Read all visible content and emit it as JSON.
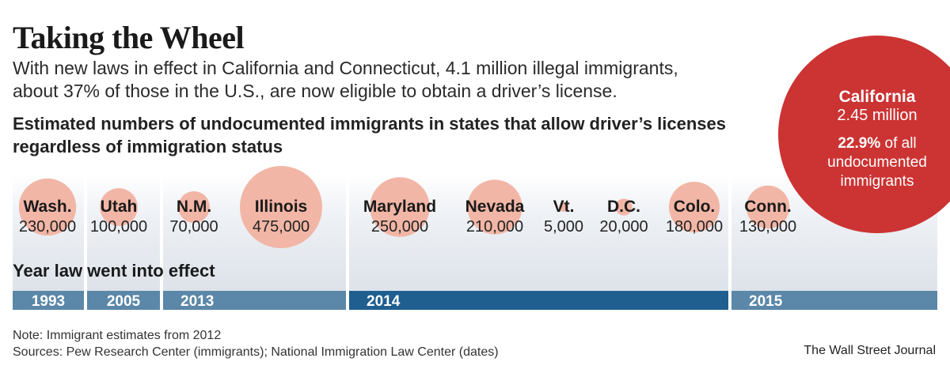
{
  "header": {
    "title": "Taking the Wheel",
    "subtitle": "With new laws in effect in California and Connecticut, 4.1 million illegal immigrants, about 37% of those in the U.S., are now eligible to obtain a driver’s license.",
    "chart_heading": "Estimated numbers of undocumented immigrants in states that allow driver’s licenses regardless of immigration status",
    "year_heading": "Year law went into effect"
  },
  "footer": {
    "note": "Note: Immigrant estimates from 2012",
    "sources": "Sources: Pew Research Center (immigrants); National Immigration Law Center (dates)",
    "publisher": "The Wall Street Journal"
  },
  "colors": {
    "bubble": "#f2b6a6",
    "california": "#cc3333",
    "band": "#dde3ea",
    "year_bar": "#5b87a8",
    "year_bar_2014": "#1f5f8f"
  },
  "chart_data": {
    "type": "bubble",
    "title": "Estimated numbers of undocumented immigrants in states that allow driver’s licenses regardless of immigration status",
    "series": [
      {
        "state": "Wash.",
        "value": 230000,
        "label": "230,000",
        "year": 1993
      },
      {
        "state": "Utah",
        "value": 100000,
        "label": "100,000",
        "year": 2005
      },
      {
        "state": "N.M.",
        "value": 70000,
        "label": "70,000",
        "year": 2013
      },
      {
        "state": "Illinois",
        "value": 475000,
        "label": "475,000",
        "year": 2013
      },
      {
        "state": "Maryland",
        "value": 250000,
        "label": "250,000",
        "year": 2014
      },
      {
        "state": "Nevada",
        "value": 210000,
        "label": "210,000",
        "year": 2014
      },
      {
        "state": "Vt.",
        "value": 5000,
        "label": "5,000",
        "year": 2014
      },
      {
        "state": "D.C.",
        "value": 20000,
        "label": "20,000",
        "year": 2014
      },
      {
        "state": "Colo.",
        "value": 180000,
        "label": "180,000",
        "year": 2014
      },
      {
        "state": "Conn.",
        "value": 130000,
        "label": "130,000",
        "year": 2015
      }
    ],
    "callout": {
      "state": "California",
      "value": 2450000,
      "value_label": "2.45 million",
      "share_value": "22.9%",
      "share_text": "of all undocumented immigrants",
      "year": 2015
    },
    "years": [
      "1993",
      "2005",
      "2013",
      "2014",
      "2015"
    ]
  }
}
